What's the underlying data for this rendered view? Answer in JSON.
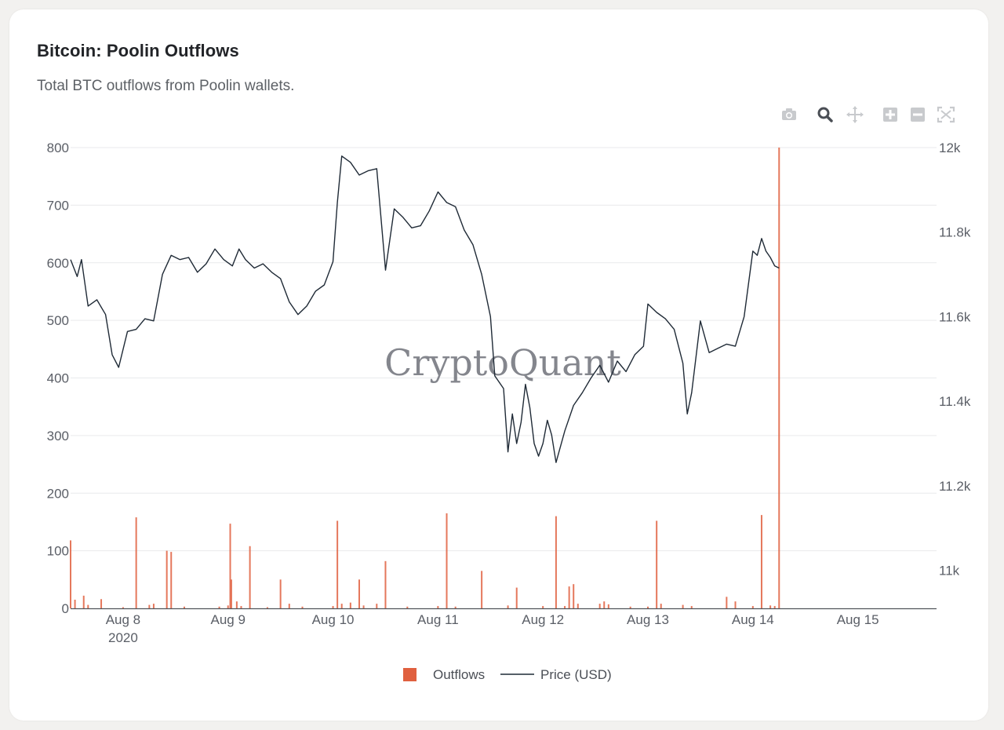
{
  "card": {
    "title": "Bitcoin: Poolin Outflows",
    "subtitle": "Total BTC outflows from Poolin wallets."
  },
  "modebar": {
    "icons": [
      "camera-icon",
      "zoom-icon",
      "pan-icon",
      "zoom-in-icon",
      "zoom-out-icon",
      "autoscale-icon"
    ]
  },
  "colors": {
    "outflows": "#e0603f",
    "price": "#1f2a36",
    "grid": "#e9eaec",
    "axis_text": "#5a5e66"
  },
  "chart_data": {
    "type": "bar+line",
    "title": "Bitcoin: Poolin Outflows",
    "watermark": "CryptoQuant",
    "x_axis": {
      "type": "date",
      "range": [
        "2020-08-07T12:00",
        "2020-08-15T18:00"
      ],
      "tick_labels": [
        "Aug 8",
        "Aug 9",
        "Aug 10",
        "Aug 11",
        "Aug 12",
        "Aug 13",
        "Aug 14",
        "Aug 15"
      ],
      "tick_dates": [
        "2020-08-08",
        "2020-08-09",
        "2020-08-10",
        "2020-08-11",
        "2020-08-12",
        "2020-08-13",
        "2020-08-14",
        "2020-08-15"
      ],
      "year_label": "2020"
    },
    "y_left": {
      "label": "",
      "range": [
        0,
        800
      ],
      "ticks": [
        "0",
        "100",
        "200",
        "300",
        "400",
        "500",
        "600",
        "700",
        "800"
      ],
      "tick_values": [
        0,
        100,
        200,
        300,
        400,
        500,
        600,
        700,
        800
      ]
    },
    "y_right": {
      "label": "",
      "range": [
        10910,
        12000
      ],
      "ticks": [
        "11k",
        "11.2k",
        "11.4k",
        "11.6k",
        "11.8k",
        "12k"
      ],
      "tick_values": [
        11000,
        11200,
        11400,
        11600,
        11800,
        12000
      ]
    },
    "legend": {
      "position": "bottom-center",
      "entries": [
        "Outflows",
        "Price (USD)"
      ]
    },
    "series": [
      {
        "name": "Outflows",
        "kind": "bar",
        "axis": "left",
        "points": [
          [
            "2020-08-07T12:00",
            118
          ],
          [
            "2020-08-07T13:00",
            15
          ],
          [
            "2020-08-07T15:00",
            22
          ],
          [
            "2020-08-07T16:00",
            6
          ],
          [
            "2020-08-07T19:00",
            16
          ],
          [
            "2020-08-08T00:00",
            2
          ],
          [
            "2020-08-08T03:00",
            158
          ],
          [
            "2020-08-08T06:00",
            6
          ],
          [
            "2020-08-08T07:00",
            8
          ],
          [
            "2020-08-08T10:00",
            100
          ],
          [
            "2020-08-08T11:00",
            98
          ],
          [
            "2020-08-08T14:00",
            3
          ],
          [
            "2020-08-08T22:00",
            3
          ],
          [
            "2020-08-09T00:00",
            5
          ],
          [
            "2020-08-09T00:30",
            147
          ],
          [
            "2020-08-09T00:45",
            50
          ],
          [
            "2020-08-09T02:00",
            12
          ],
          [
            "2020-08-09T03:00",
            4
          ],
          [
            "2020-08-09T05:00",
            108
          ],
          [
            "2020-08-09T09:00",
            2
          ],
          [
            "2020-08-09T12:00",
            50
          ],
          [
            "2020-08-09T14:00",
            8
          ],
          [
            "2020-08-09T17:00",
            3
          ],
          [
            "2020-08-10T00:00",
            4
          ],
          [
            "2020-08-10T01:00",
            152
          ],
          [
            "2020-08-10T02:00",
            8
          ],
          [
            "2020-08-10T04:00",
            10
          ],
          [
            "2020-08-10T06:00",
            50
          ],
          [
            "2020-08-10T07:00",
            5
          ],
          [
            "2020-08-10T10:00",
            8
          ],
          [
            "2020-08-10T12:00",
            82
          ],
          [
            "2020-08-10T17:00",
            3
          ],
          [
            "2020-08-11T00:00",
            4
          ],
          [
            "2020-08-11T02:00",
            165
          ],
          [
            "2020-08-11T04:00",
            3
          ],
          [
            "2020-08-11T10:00",
            65
          ],
          [
            "2020-08-11T16:00",
            5
          ],
          [
            "2020-08-11T18:00",
            36
          ],
          [
            "2020-08-12T00:00",
            4
          ],
          [
            "2020-08-12T03:00",
            160
          ],
          [
            "2020-08-12T05:00",
            4
          ],
          [
            "2020-08-12T06:00",
            38
          ],
          [
            "2020-08-12T07:00",
            42
          ],
          [
            "2020-08-12T08:00",
            8
          ],
          [
            "2020-08-12T13:00",
            8
          ],
          [
            "2020-08-12T14:00",
            12
          ],
          [
            "2020-08-12T15:00",
            7
          ],
          [
            "2020-08-12T20:00",
            3
          ],
          [
            "2020-08-13T00:00",
            3
          ],
          [
            "2020-08-13T02:00",
            152
          ],
          [
            "2020-08-13T03:00",
            8
          ],
          [
            "2020-08-13T08:00",
            6
          ],
          [
            "2020-08-13T10:00",
            4
          ],
          [
            "2020-08-13T18:00",
            20
          ],
          [
            "2020-08-13T20:00",
            12
          ],
          [
            "2020-08-14T00:00",
            4
          ],
          [
            "2020-08-14T02:00",
            162
          ],
          [
            "2020-08-14T04:00",
            5
          ],
          [
            "2020-08-14T05:00",
            4
          ],
          [
            "2020-08-14T06:00",
            800
          ]
        ]
      },
      {
        "name": "Price (USD)",
        "kind": "line",
        "axis": "right",
        "points": [
          [
            "2020-08-07T12:00",
            11735
          ],
          [
            "2020-08-07T13:30",
            11695
          ],
          [
            "2020-08-07T14:30",
            11735
          ],
          [
            "2020-08-07T16:00",
            11625
          ],
          [
            "2020-08-07T18:00",
            11640
          ],
          [
            "2020-08-07T20:00",
            11605
          ],
          [
            "2020-08-07T21:30",
            11510
          ],
          [
            "2020-08-07T23:00",
            11480
          ],
          [
            "2020-08-08T01:00",
            11565
          ],
          [
            "2020-08-08T03:00",
            11570
          ],
          [
            "2020-08-08T05:00",
            11595
          ],
          [
            "2020-08-08T07:00",
            11590
          ],
          [
            "2020-08-08T09:00",
            11700
          ],
          [
            "2020-08-08T11:00",
            11745
          ],
          [
            "2020-08-08T13:00",
            11735
          ],
          [
            "2020-08-08T15:00",
            11740
          ],
          [
            "2020-08-08T17:00",
            11705
          ],
          [
            "2020-08-08T19:00",
            11725
          ],
          [
            "2020-08-08T21:00",
            11760
          ],
          [
            "2020-08-08T23:00",
            11735
          ],
          [
            "2020-08-09T01:00",
            11720
          ],
          [
            "2020-08-09T02:30",
            11760
          ],
          [
            "2020-08-09T04:00",
            11735
          ],
          [
            "2020-08-09T06:00",
            11715
          ],
          [
            "2020-08-09T08:00",
            11725
          ],
          [
            "2020-08-09T10:00",
            11705
          ],
          [
            "2020-08-09T12:00",
            11690
          ],
          [
            "2020-08-09T14:00",
            11635
          ],
          [
            "2020-08-09T16:00",
            11605
          ],
          [
            "2020-08-09T18:00",
            11625
          ],
          [
            "2020-08-09T20:00",
            11660
          ],
          [
            "2020-08-09T22:00",
            11675
          ],
          [
            "2020-08-10T00:00",
            11730
          ],
          [
            "2020-08-10T01:00",
            11870
          ],
          [
            "2020-08-10T02:00",
            11980
          ],
          [
            "2020-08-10T04:00",
            11965
          ],
          [
            "2020-08-10T06:00",
            11935
          ],
          [
            "2020-08-10T08:00",
            11945
          ],
          [
            "2020-08-10T10:00",
            11950
          ],
          [
            "2020-08-10T12:00",
            11710
          ],
          [
            "2020-08-10T14:00",
            11855
          ],
          [
            "2020-08-10T16:00",
            11835
          ],
          [
            "2020-08-10T18:00",
            11810
          ],
          [
            "2020-08-10T20:00",
            11815
          ],
          [
            "2020-08-10T22:00",
            11850
          ],
          [
            "2020-08-11T00:00",
            11895
          ],
          [
            "2020-08-11T02:00",
            11870
          ],
          [
            "2020-08-11T04:00",
            11860
          ],
          [
            "2020-08-11T06:00",
            11805
          ],
          [
            "2020-08-11T08:00",
            11770
          ],
          [
            "2020-08-11T10:00",
            11700
          ],
          [
            "2020-08-11T12:00",
            11600
          ],
          [
            "2020-08-11T13:00",
            11460
          ],
          [
            "2020-08-11T15:00",
            11430
          ],
          [
            "2020-08-11T16:00",
            11280
          ],
          [
            "2020-08-11T17:00",
            11370
          ],
          [
            "2020-08-11T18:00",
            11300
          ],
          [
            "2020-08-11T19:00",
            11350
          ],
          [
            "2020-08-11T20:00",
            11440
          ],
          [
            "2020-08-11T21:00",
            11385
          ],
          [
            "2020-08-11T22:00",
            11300
          ],
          [
            "2020-08-11T23:00",
            11270
          ],
          [
            "2020-08-12T00:00",
            11300
          ],
          [
            "2020-08-12T01:00",
            11355
          ],
          [
            "2020-08-12T02:00",
            11320
          ],
          [
            "2020-08-12T03:00",
            11255
          ],
          [
            "2020-08-12T05:00",
            11330
          ],
          [
            "2020-08-12T07:00",
            11390
          ],
          [
            "2020-08-12T09:00",
            11420
          ],
          [
            "2020-08-12T11:00",
            11455
          ],
          [
            "2020-08-12T13:00",
            11485
          ],
          [
            "2020-08-12T15:00",
            11445
          ],
          [
            "2020-08-12T17:00",
            11495
          ],
          [
            "2020-08-12T19:00",
            11470
          ],
          [
            "2020-08-12T21:00",
            11510
          ],
          [
            "2020-08-12T23:00",
            11530
          ],
          [
            "2020-08-13T00:00",
            11630
          ],
          [
            "2020-08-13T02:00",
            11610
          ],
          [
            "2020-08-13T04:00",
            11595
          ],
          [
            "2020-08-13T06:00",
            11570
          ],
          [
            "2020-08-13T08:00",
            11490
          ],
          [
            "2020-08-13T09:00",
            11370
          ],
          [
            "2020-08-13T10:00",
            11420
          ],
          [
            "2020-08-13T12:00",
            11590
          ],
          [
            "2020-08-13T14:00",
            11515
          ],
          [
            "2020-08-13T16:00",
            11525
          ],
          [
            "2020-08-13T18:00",
            11535
          ],
          [
            "2020-08-13T20:00",
            11530
          ],
          [
            "2020-08-13T22:00",
            11600
          ],
          [
            "2020-08-14T00:00",
            11755
          ],
          [
            "2020-08-14T01:00",
            11745
          ],
          [
            "2020-08-14T02:00",
            11785
          ],
          [
            "2020-08-14T03:00",
            11755
          ],
          [
            "2020-08-14T04:00",
            11740
          ],
          [
            "2020-08-14T05:00",
            11720
          ],
          [
            "2020-08-14T06:00",
            11715
          ]
        ]
      }
    ]
  }
}
